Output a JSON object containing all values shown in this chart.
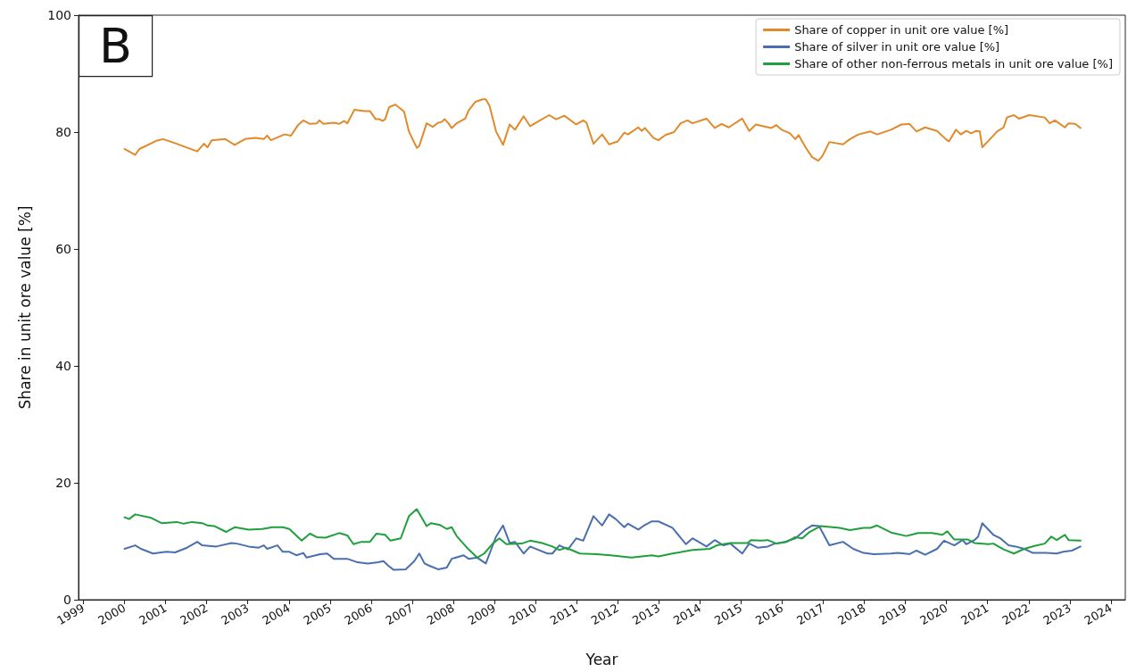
{
  "chart_data": {
    "type": "line",
    "xlabel": "Year",
    "ylabel": "Share in unit ore value [%]",
    "annotations": [
      "B"
    ],
    "xlim": [
      1998.88,
      2024.35
    ],
    "xticks": [
      1999,
      2000,
      2001,
      2002,
      2003,
      2004,
      2005,
      2006,
      2007,
      2008,
      2009,
      2010,
      2011,
      2012,
      2013,
      2014,
      2015,
      2016,
      2017,
      2018,
      2019,
      2020,
      2021,
      2022,
      2023,
      2024
    ],
    "ylim": [
      0,
      100
    ],
    "yticks": [
      0,
      20,
      40,
      60,
      80,
      100
    ],
    "grid": false,
    "legend": "top right",
    "marker": "none",
    "line_style": "solid",
    "series": [
      {
        "name": "Share of copper in unit ore value [%]",
        "color": "#e08a2c",
        "x": [
          2000.0,
          2000.26,
          2000.36,
          2000.77,
          2000.94,
          2001.27,
          2001.77,
          2001.93,
          2002.02,
          2002.12,
          2002.45,
          2002.68,
          2002.93,
          2003.18,
          2003.39,
          2003.47,
          2003.56,
          2003.89,
          2004.05,
          2004.22,
          2004.35,
          2004.51,
          2004.68,
          2004.74,
          2004.84,
          2005.09,
          2005.22,
          2005.34,
          2005.42,
          2005.59,
          2005.84,
          2005.97,
          2006.11,
          2006.21,
          2006.28,
          2006.34,
          2006.44,
          2006.59,
          2006.8,
          2006.92,
          2007.11,
          2007.17,
          2007.35,
          2007.5,
          2007.63,
          2007.71,
          2007.79,
          2007.88,
          2007.96,
          2008.08,
          2008.29,
          2008.37,
          2008.54,
          2008.71,
          2008.79,
          2008.88,
          2009.04,
          2009.21,
          2009.37,
          2009.5,
          2009.71,
          2009.87,
          2010.08,
          2010.33,
          2010.5,
          2010.7,
          2010.99,
          2011.16,
          2011.24,
          2011.41,
          2011.62,
          2011.79,
          2012.0,
          2012.16,
          2012.25,
          2012.5,
          2012.58,
          2012.66,
          2012.87,
          2012.99,
          2013.16,
          2013.37,
          2013.53,
          2013.7,
          2013.82,
          2014.16,
          2014.36,
          2014.53,
          2014.7,
          2015.03,
          2015.2,
          2015.36,
          2015.74,
          2015.86,
          2015.99,
          2016.19,
          2016.32,
          2016.4,
          2016.57,
          2016.73,
          2016.88,
          2016.98,
          2017.15,
          2017.48,
          2017.65,
          2017.86,
          2018.15,
          2018.31,
          2018.65,
          2018.9,
          2019.1,
          2019.27,
          2019.48,
          2019.77,
          2019.98,
          2020.06,
          2020.23,
          2020.35,
          2020.48,
          2020.6,
          2020.72,
          2020.81,
          2020.87,
          2021.06,
          2021.23,
          2021.39,
          2021.47,
          2021.64,
          2021.76,
          2022.01,
          2022.39,
          2022.51,
          2022.64,
          2022.88,
          2022.97,
          2023.13,
          2023.26
        ],
        "values": [
          77.1,
          76.1,
          77.1,
          78.5,
          78.8,
          78.0,
          76.7,
          78.0,
          77.4,
          78.6,
          78.8,
          77.8,
          78.8,
          79.0,
          78.8,
          79.4,
          78.6,
          79.6,
          79.4,
          81.2,
          82.0,
          81.4,
          81.5,
          82.0,
          81.4,
          81.6,
          81.4,
          81.9,
          81.5,
          83.8,
          83.6,
          83.6,
          82.2,
          82.2,
          81.9,
          82.2,
          84.3,
          84.7,
          83.5,
          80.1,
          77.3,
          77.6,
          81.5,
          80.9,
          81.6,
          81.7,
          82.2,
          81.5,
          80.7,
          81.5,
          82.3,
          83.7,
          85.2,
          85.6,
          85.6,
          84.5,
          80.1,
          77.8,
          81.3,
          80.4,
          82.7,
          81.0,
          81.9,
          82.9,
          82.2,
          82.8,
          81.3,
          82.0,
          81.6,
          78.0,
          79.6,
          77.9,
          78.4,
          79.9,
          79.6,
          80.8,
          80.2,
          80.7,
          79.0,
          78.6,
          79.5,
          80.0,
          81.5,
          82.0,
          81.5,
          82.3,
          80.7,
          81.4,
          80.8,
          82.3,
          80.2,
          81.3,
          80.7,
          81.2,
          80.4,
          79.8,
          78.8,
          79.5,
          77.4,
          75.7,
          75.1,
          75.9,
          78.3,
          77.9,
          78.8,
          79.6,
          80.1,
          79.6,
          80.4,
          81.3,
          81.4,
          80.1,
          80.8,
          80.2,
          78.8,
          78.4,
          80.4,
          79.6,
          80.2,
          79.8,
          80.2,
          80.1,
          77.4,
          78.8,
          80.1,
          80.8,
          82.5,
          82.9,
          82.3,
          82.9,
          82.5,
          81.5,
          82.0,
          80.8,
          81.5,
          81.4,
          80.7
        ]
      },
      {
        "name": "Share of silver in unit ore value [%]",
        "color": "#4a6fae",
        "x": [
          2000.0,
          2000.26,
          2000.4,
          2000.69,
          2001.02,
          2001.23,
          2001.52,
          2001.77,
          2001.89,
          2002.23,
          2002.6,
          2002.73,
          2003.02,
          2003.26,
          2003.39,
          2003.47,
          2003.72,
          2003.85,
          2004.01,
          2004.18,
          2004.35,
          2004.43,
          2004.76,
          2004.93,
          2005.09,
          2005.42,
          2005.67,
          2005.92,
          2006.17,
          2006.3,
          2006.42,
          2006.55,
          2006.84,
          2007.05,
          2007.17,
          2007.3,
          2007.42,
          2007.63,
          2007.84,
          2007.96,
          2008.25,
          2008.37,
          2008.58,
          2008.79,
          2009.04,
          2009.21,
          2009.37,
          2009.5,
          2009.71,
          2009.87,
          2010.04,
          2010.29,
          2010.41,
          2010.58,
          2010.79,
          2010.99,
          2011.16,
          2011.41,
          2011.62,
          2011.79,
          2011.95,
          2012.16,
          2012.25,
          2012.5,
          2012.62,
          2012.83,
          2012.99,
          2013.33,
          2013.66,
          2013.82,
          2014.16,
          2014.36,
          2014.57,
          2014.74,
          2015.03,
          2015.2,
          2015.4,
          2015.65,
          2015.82,
          2016.07,
          2016.32,
          2016.57,
          2016.73,
          2016.9,
          2017.15,
          2017.48,
          2017.73,
          2017.98,
          2018.23,
          2018.65,
          2018.81,
          2019.1,
          2019.27,
          2019.48,
          2019.77,
          2019.94,
          2020.19,
          2020.39,
          2020.48,
          2020.68,
          2020.77,
          2020.87,
          2021.14,
          2021.31,
          2021.51,
          2021.68,
          2021.89,
          2022.1,
          2022.43,
          2022.68,
          2022.84,
          2023.05,
          2023.26
        ],
        "values": [
          8.7,
          9.3,
          8.7,
          7.9,
          8.2,
          8.1,
          8.9,
          9.9,
          9.3,
          9.1,
          9.7,
          9.6,
          9.1,
          8.9,
          9.3,
          8.7,
          9.3,
          8.2,
          8.2,
          7.6,
          8.0,
          7.2,
          7.8,
          7.9,
          7.0,
          7.0,
          6.4,
          6.2,
          6.4,
          6.6,
          5.8,
          5.1,
          5.2,
          6.6,
          7.9,
          6.2,
          5.8,
          5.2,
          5.5,
          7.0,
          7.6,
          7.0,
          7.2,
          6.2,
          10.8,
          12.7,
          9.7,
          9.9,
          7.9,
          9.1,
          8.6,
          7.9,
          7.9,
          9.3,
          8.6,
          10.5,
          10.1,
          14.3,
          12.7,
          14.6,
          13.8,
          12.4,
          13.0,
          12.0,
          12.6,
          13.4,
          13.4,
          12.3,
          9.5,
          10.5,
          9.1,
          10.2,
          9.3,
          9.6,
          7.9,
          9.6,
          8.9,
          9.1,
          9.6,
          9.9,
          10.5,
          12.0,
          12.7,
          12.6,
          9.3,
          9.9,
          8.7,
          8.0,
          7.8,
          7.9,
          8.0,
          7.8,
          8.4,
          7.7,
          8.7,
          10.1,
          9.3,
          10.2,
          9.5,
          10.2,
          10.8,
          13.1,
          11.1,
          10.5,
          9.3,
          9.1,
          8.7,
          8.0,
          8.0,
          7.9,
          8.2,
          8.4,
          9.1
        ]
      },
      {
        "name": "Share of other non-ferrous metals in unit ore value [%]",
        "color": "#1fa03c",
        "x": [
          2000.0,
          2000.11,
          2000.26,
          2000.65,
          2000.9,
          2001.27,
          2001.44,
          2001.64,
          2001.89,
          2002.02,
          2002.18,
          2002.47,
          2002.68,
          2003.02,
          2003.35,
          2003.6,
          2003.85,
          2004.01,
          2004.31,
          2004.51,
          2004.68,
          2004.89,
          2005.22,
          2005.42,
          2005.57,
          2005.76,
          2005.97,
          2006.13,
          2006.34,
          2006.47,
          2006.72,
          2006.92,
          2007.11,
          2007.35,
          2007.46,
          2007.67,
          2007.84,
          2007.96,
          2008.08,
          2008.33,
          2008.58,
          2008.75,
          2008.96,
          2009.12,
          2009.29,
          2009.66,
          2009.87,
          2010.16,
          2010.41,
          2010.58,
          2010.74,
          2011.08,
          2011.49,
          2011.83,
          2012.33,
          2012.83,
          2012.99,
          2013.33,
          2013.82,
          2014.24,
          2014.41,
          2014.74,
          2015.16,
          2015.24,
          2015.49,
          2015.65,
          2015.86,
          2016.11,
          2016.32,
          2016.49,
          2016.65,
          2016.94,
          2017.4,
          2017.65,
          2017.98,
          2018.15,
          2018.31,
          2018.65,
          2019.02,
          2019.31,
          2019.65,
          2019.9,
          2020.02,
          2020.19,
          2020.52,
          2020.68,
          2021.02,
          2021.14,
          2021.39,
          2021.64,
          2021.89,
          2022.14,
          2022.39,
          2022.55,
          2022.68,
          2022.88,
          2022.97,
          2023.26
        ],
        "values": [
          14.1,
          13.8,
          14.6,
          14.0,
          13.1,
          13.3,
          13.0,
          13.3,
          13.1,
          12.7,
          12.6,
          11.6,
          12.4,
          12.0,
          12.1,
          12.4,
          12.4,
          12.1,
          10.1,
          11.3,
          10.7,
          10.6,
          11.4,
          11.0,
          9.5,
          9.9,
          9.9,
          11.3,
          11.1,
          10.1,
          10.5,
          14.3,
          15.5,
          12.6,
          13.1,
          12.8,
          12.1,
          12.4,
          10.9,
          8.9,
          7.2,
          7.9,
          9.6,
          10.5,
          9.5,
          9.6,
          10.1,
          9.7,
          9.1,
          8.5,
          8.9,
          7.9,
          7.8,
          7.6,
          7.2,
          7.6,
          7.4,
          7.9,
          8.5,
          8.7,
          9.3,
          9.7,
          9.7,
          10.2,
          10.1,
          10.2,
          9.6,
          9.9,
          10.7,
          10.5,
          11.5,
          12.6,
          12.3,
          11.9,
          12.3,
          12.3,
          12.7,
          11.5,
          10.9,
          11.4,
          11.4,
          11.1,
          11.7,
          10.3,
          10.3,
          9.7,
          9.5,
          9.6,
          8.6,
          7.9,
          8.7,
          9.2,
          9.6,
          10.8,
          10.2,
          11.1,
          10.2,
          10.1
        ]
      }
    ]
  }
}
